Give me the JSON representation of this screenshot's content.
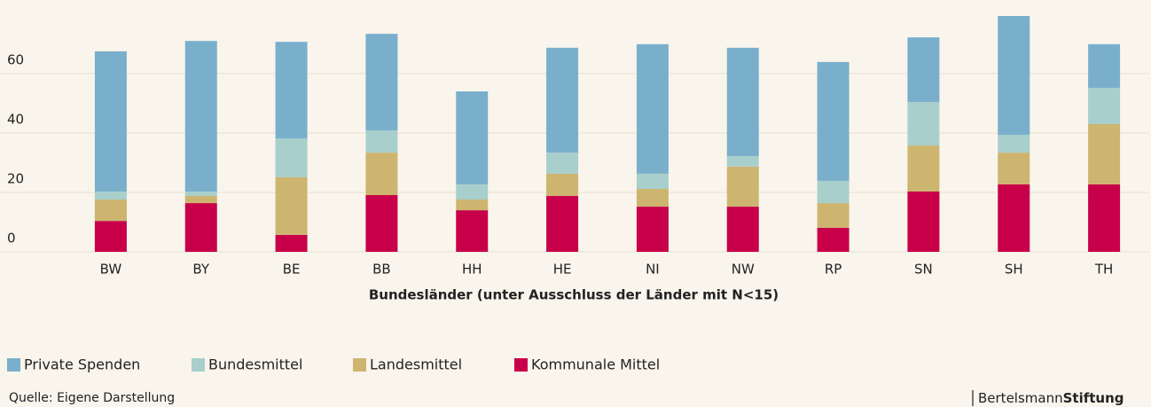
{
  "chart_data": {
    "type": "stacked_bar",
    "xlabel": "Bundesländer  (unter Ausschluss der Länder mit N<15)",
    "categories": [
      "BW",
      "BY",
      "BE",
      "BB",
      "HH",
      "HE",
      "NI",
      "NW",
      "RP",
      "SN",
      "SH",
      "TH"
    ],
    "series": [
      {
        "name": "Private Spenden",
        "color": "#7aafcc",
        "values": [
          47.2,
          50.7,
          32.5,
          32.5,
          31.3,
          35.3,
          43.6,
          36.5,
          40.0,
          21.8,
          40.0,
          14.7
        ]
      },
      {
        "name": "Bundesmittel",
        "color": "#a8cfcc",
        "values": [
          2.7,
          1.5,
          13.1,
          7.5,
          5.1,
          7.1,
          5.1,
          3.5,
          7.5,
          14.6,
          6.0,
          12.2
        ]
      },
      {
        "name": "Landesmittel",
        "color": "#cdb56f",
        "values": [
          7.2,
          2.4,
          19.4,
          14.3,
          3.6,
          7.5,
          6.0,
          13.5,
          8.3,
          15.5,
          10.7,
          20.3
        ]
      },
      {
        "name": "Kommunale Mittel",
        "color": "#c8004a",
        "values": [
          10.4,
          16.4,
          5.7,
          19.1,
          14.0,
          18.8,
          15.2,
          15.2,
          8.1,
          20.3,
          22.7,
          22.7
        ]
      }
    ],
    "ylim": [
      0,
      80
    ],
    "yticks": [
      0,
      20,
      40,
      60
    ],
    "grid": true,
    "source": "Quelle: Eigene Darstellung",
    "brand": [
      "Bertelsmann",
      "Stiftung"
    ]
  }
}
